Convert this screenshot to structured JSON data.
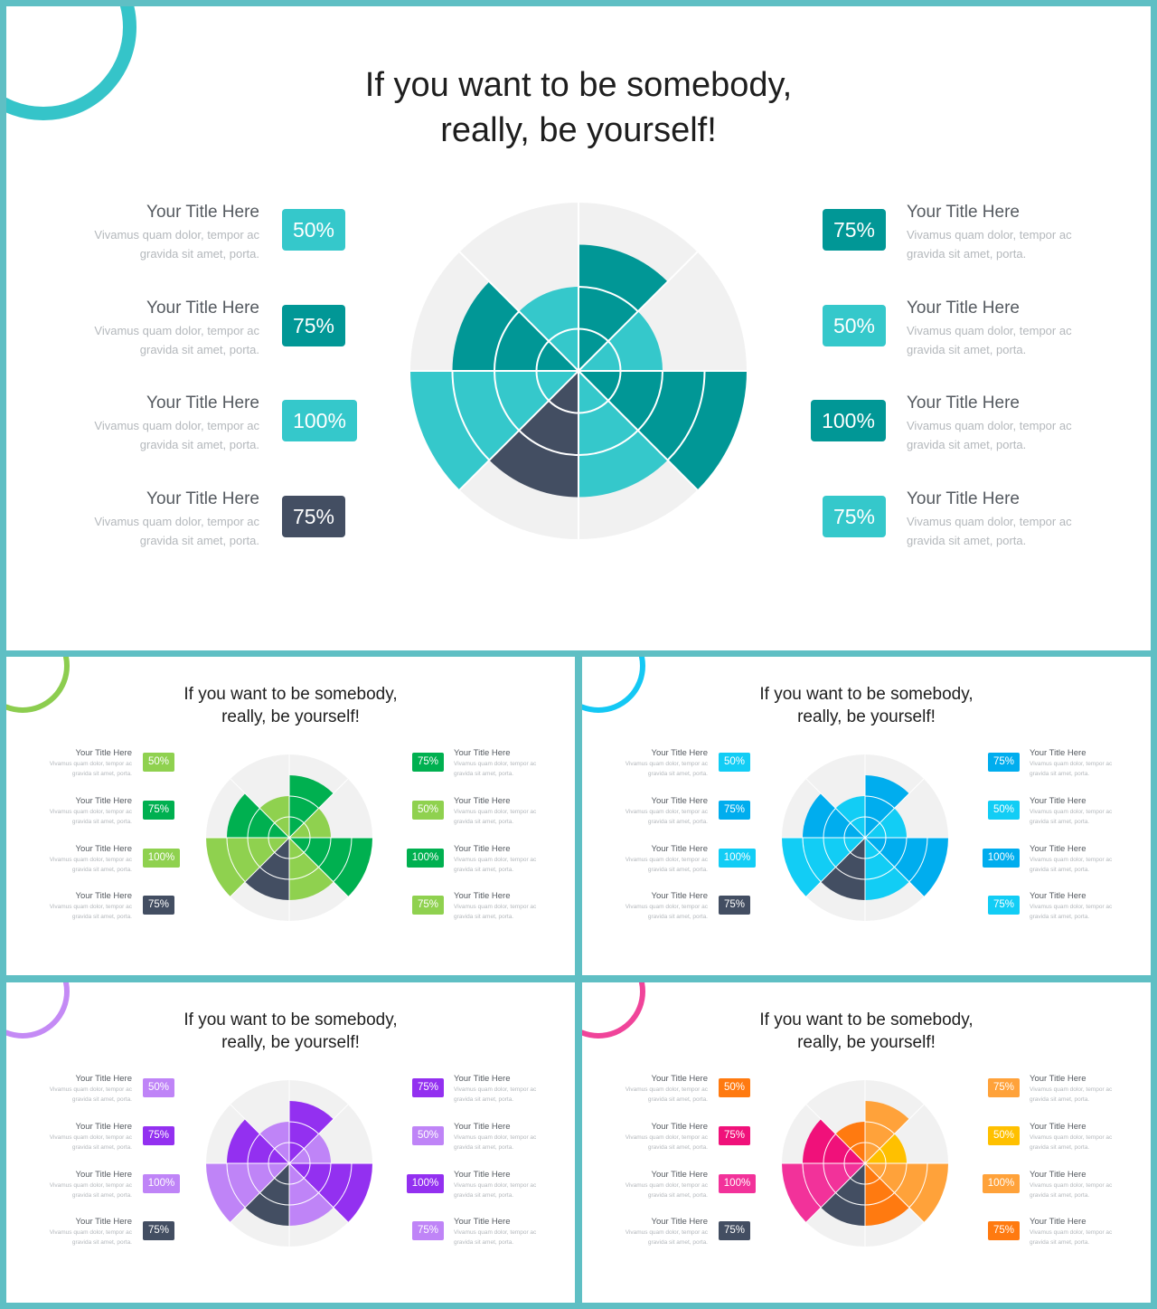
{
  "slides": [
    {
      "id": "teal",
      "title_lines": [
        "If you want to be somebody,",
        "really, be yourself!"
      ],
      "deco_ring_color": "#35c4c9",
      "items_left": [
        {
          "title": "Your Title Here",
          "desc_lines": [
            "Vivamus quam dolor, tempor ac",
            "gravida sit amet, porta."
          ],
          "value": "50%",
          "color": "#35c8cb"
        },
        {
          "title": "Your Title Here",
          "desc_lines": [
            "Vivamus quam dolor, tempor ac",
            "gravida sit amet, porta."
          ],
          "value": "75%",
          "color": "#019796"
        },
        {
          "title": "Your Title Here",
          "desc_lines": [
            "Vivamus quam dolor, tempor ac",
            "gravida sit amet, porta."
          ],
          "value": "100%",
          "color": "#35c8cb"
        },
        {
          "title": "Your Title Here",
          "desc_lines": [
            "Vivamus quam dolor, tempor ac",
            "gravida sit amet, porta."
          ],
          "value": "75%",
          "color": "#434e62"
        }
      ],
      "items_right": [
        {
          "title": "Your Title Here",
          "desc_lines": [
            "Vivamus quam dolor, tempor ac",
            "gravida sit amet, porta."
          ],
          "value": "75%",
          "color": "#019796"
        },
        {
          "title": "Your Title Here",
          "desc_lines": [
            "Vivamus quam dolor, tempor ac",
            "gravida sit amet, porta."
          ],
          "value": "50%",
          "color": "#35c8cb"
        },
        {
          "title": "Your Title Here",
          "desc_lines": [
            "Vivamus quam dolor, tempor ac",
            "gravida sit amet, porta."
          ],
          "value": "100%",
          "color": "#019796"
        },
        {
          "title": "Your Title Here",
          "desc_lines": [
            "Vivamus quam dolor, tempor ac",
            "gravida sit amet, porta."
          ],
          "value": "75%",
          "color": "#35c8cb"
        }
      ],
      "chart_data": {
        "type": "polar-area",
        "sectors": [
          {
            "label": "right-1",
            "value": 75,
            "color": "#019796"
          },
          {
            "label": "right-2",
            "value": 50,
            "color": "#35c8cb"
          },
          {
            "label": "right-3",
            "value": 100,
            "color": "#019796"
          },
          {
            "label": "right-4",
            "value": 75,
            "color": "#35c8cb"
          },
          {
            "label": "left-4",
            "value": 75,
            "color": "#434e62"
          },
          {
            "label": "left-3",
            "value": 100,
            "color": "#35c8cb"
          },
          {
            "label": "left-2",
            "value": 75,
            "color": "#019796"
          },
          {
            "label": "left-1",
            "value": 50,
            "color": "#35c8cb"
          }
        ],
        "max_value": 100,
        "rings": [
          25,
          50,
          75
        ],
        "background_color": "#f1f1f1"
      }
    },
    {
      "id": "green",
      "title_lines": [
        "If you want to be somebody,",
        "really, be yourself!"
      ],
      "deco_ring_color": "#8ccd4f",
      "items_left": [
        {
          "title": "Your Title Here",
          "desc_lines": [
            "Vivamus quam dolor, tempor ac",
            "gravida sit amet, porta."
          ],
          "value": "50%",
          "color": "#8fd14f"
        },
        {
          "title": "Your Title Here",
          "desc_lines": [
            "Vivamus quam dolor, tempor ac",
            "gravida sit amet, porta."
          ],
          "value": "75%",
          "color": "#00b050"
        },
        {
          "title": "Your Title Here",
          "desc_lines": [
            "Vivamus quam dolor, tempor ac",
            "gravida sit amet, porta."
          ],
          "value": "100%",
          "color": "#8fd14f"
        },
        {
          "title": "Your Title Here",
          "desc_lines": [
            "Vivamus quam dolor, tempor ac",
            "gravida sit amet, porta."
          ],
          "value": "75%",
          "color": "#434e62"
        }
      ],
      "items_right": [
        {
          "title": "Your Title Here",
          "desc_lines": [
            "Vivamus quam dolor, tempor ac",
            "gravida sit amet, porta."
          ],
          "value": "75%",
          "color": "#00b050"
        },
        {
          "title": "Your Title Here",
          "desc_lines": [
            "Vivamus quam dolor, tempor ac",
            "gravida sit amet, porta."
          ],
          "value": "50%",
          "color": "#8fd14f"
        },
        {
          "title": "Your Title Here",
          "desc_lines": [
            "Vivamus quam dolor, tempor ac",
            "gravida sit amet, porta."
          ],
          "value": "100%",
          "color": "#00b050"
        },
        {
          "title": "Your Title Here",
          "desc_lines": [
            "Vivamus quam dolor, tempor ac",
            "gravida sit amet, porta."
          ],
          "value": "75%",
          "color": "#8fd14f"
        }
      ],
      "chart_data": {
        "type": "polar-area",
        "sectors": [
          {
            "label": "right-1",
            "value": 75,
            "color": "#00b050"
          },
          {
            "label": "right-2",
            "value": 50,
            "color": "#8fd14f"
          },
          {
            "label": "right-3",
            "value": 100,
            "color": "#00b050"
          },
          {
            "label": "right-4",
            "value": 75,
            "color": "#8fd14f"
          },
          {
            "label": "left-4",
            "value": 75,
            "color": "#434e62"
          },
          {
            "label": "left-3",
            "value": 100,
            "color": "#8fd14f"
          },
          {
            "label": "left-2",
            "value": 75,
            "color": "#00b050"
          },
          {
            "label": "left-1",
            "value": 50,
            "color": "#8fd14f"
          }
        ],
        "max_value": 100,
        "rings": [
          25,
          50,
          75
        ],
        "background_color": "#f1f1f1"
      }
    },
    {
      "id": "blue",
      "title_lines": [
        "If you want to be somebody,",
        "really, be yourself!"
      ],
      "deco_ring_color": "#14c8f4",
      "items_left": [
        {
          "title": "Your Title Here",
          "desc_lines": [
            "Vivamus quam dolor, tempor ac",
            "gravida sit amet, porta."
          ],
          "value": "50%",
          "color": "#12cdf5"
        },
        {
          "title": "Your Title Here",
          "desc_lines": [
            "Vivamus quam dolor, tempor ac",
            "gravida sit amet, porta."
          ],
          "value": "75%",
          "color": "#00adee"
        },
        {
          "title": "Your Title Here",
          "desc_lines": [
            "Vivamus quam dolor, tempor ac",
            "gravida sit amet, porta."
          ],
          "value": "100%",
          "color": "#12cdf5"
        },
        {
          "title": "Your Title Here",
          "desc_lines": [
            "Vivamus quam dolor, tempor ac",
            "gravida sit amet, porta."
          ],
          "value": "75%",
          "color": "#434e62"
        }
      ],
      "items_right": [
        {
          "title": "Your Title Here",
          "desc_lines": [
            "Vivamus quam dolor, tempor ac",
            "gravida sit amet, porta."
          ],
          "value": "75%",
          "color": "#00adee"
        },
        {
          "title": "Your Title Here",
          "desc_lines": [
            "Vivamus quam dolor, tempor ac",
            "gravida sit amet, porta."
          ],
          "value": "50%",
          "color": "#12cdf5"
        },
        {
          "title": "Your Title Here",
          "desc_lines": [
            "Vivamus quam dolor, tempor ac",
            "gravida sit amet, porta."
          ],
          "value": "100%",
          "color": "#00adee"
        },
        {
          "title": "Your Title Here",
          "desc_lines": [
            "Vivamus quam dolor, tempor ac",
            "gravida sit amet, porta."
          ],
          "value": "75%",
          "color": "#12cdf5"
        }
      ],
      "chart_data": {
        "type": "polar-area",
        "sectors": [
          {
            "label": "right-1",
            "value": 75,
            "color": "#00adee"
          },
          {
            "label": "right-2",
            "value": 50,
            "color": "#12cdf5"
          },
          {
            "label": "right-3",
            "value": 100,
            "color": "#00adee"
          },
          {
            "label": "right-4",
            "value": 75,
            "color": "#12cdf5"
          },
          {
            "label": "left-4",
            "value": 75,
            "color": "#434e62"
          },
          {
            "label": "left-3",
            "value": 100,
            "color": "#12cdf5"
          },
          {
            "label": "left-2",
            "value": 75,
            "color": "#00adee"
          },
          {
            "label": "left-1",
            "value": 50,
            "color": "#12cdf5"
          }
        ],
        "max_value": 100,
        "rings": [
          25,
          50,
          75
        ],
        "background_color": "#f1f1f1"
      }
    },
    {
      "id": "purple",
      "title_lines": [
        "If you want to be somebody,",
        "really, be yourself!"
      ],
      "deco_ring_color": "#c48af5",
      "items_left": [
        {
          "title": "Your Title Here",
          "desc_lines": [
            "Vivamus quam dolor, tempor ac",
            "gravida sit amet, porta."
          ],
          "value": "50%",
          "color": "#bf84f7"
        },
        {
          "title": "Your Title Here",
          "desc_lines": [
            "Vivamus quam dolor, tempor ac",
            "gravida sit amet, porta."
          ],
          "value": "75%",
          "color": "#9330f0"
        },
        {
          "title": "Your Title Here",
          "desc_lines": [
            "Vivamus quam dolor, tempor ac",
            "gravida sit amet, porta."
          ],
          "value": "100%",
          "color": "#bf84f7"
        },
        {
          "title": "Your Title Here",
          "desc_lines": [
            "Vivamus quam dolor, tempor ac",
            "gravida sit amet, porta."
          ],
          "value": "75%",
          "color": "#434e62"
        }
      ],
      "items_right": [
        {
          "title": "Your Title Here",
          "desc_lines": [
            "Vivamus quam dolor, tempor ac",
            "gravida sit amet, porta."
          ],
          "value": "75%",
          "color": "#9330f0"
        },
        {
          "title": "Your Title Here",
          "desc_lines": [
            "Vivamus quam dolor, tempor ac",
            "gravida sit amet, porta."
          ],
          "value": "50%",
          "color": "#bf84f7"
        },
        {
          "title": "Your Title Here",
          "desc_lines": [
            "Vivamus quam dolor, tempor ac",
            "gravida sit amet, porta."
          ],
          "value": "100%",
          "color": "#9330f0"
        },
        {
          "title": "Your Title Here",
          "desc_lines": [
            "Vivamus quam dolor, tempor ac",
            "gravida sit amet, porta."
          ],
          "value": "75%",
          "color": "#bf84f7"
        }
      ],
      "chart_data": {
        "type": "polar-area",
        "sectors": [
          {
            "label": "right-1",
            "value": 75,
            "color": "#9330f0"
          },
          {
            "label": "right-2",
            "value": 50,
            "color": "#bf84f7"
          },
          {
            "label": "right-3",
            "value": 100,
            "color": "#9330f0"
          },
          {
            "label": "right-4",
            "value": 75,
            "color": "#bf84f7"
          },
          {
            "label": "left-4",
            "value": 75,
            "color": "#434e62"
          },
          {
            "label": "left-3",
            "value": 100,
            "color": "#bf84f7"
          },
          {
            "label": "left-2",
            "value": 75,
            "color": "#9330f0"
          },
          {
            "label": "left-1",
            "value": 50,
            "color": "#bf84f7"
          }
        ],
        "max_value": 100,
        "rings": [
          25,
          50,
          75
        ],
        "background_color": "#f1f1f1"
      }
    },
    {
      "id": "warm",
      "title_lines": [
        "If you want to be somebody,",
        "really, be yourself!"
      ],
      "deco_ring_color": "#f0449a",
      "items_left": [
        {
          "title": "Your Title Here",
          "desc_lines": [
            "Vivamus quam dolor, tempor ac",
            "gravida sit amet, porta."
          ],
          "value": "50%",
          "color": "#ff7a10"
        },
        {
          "title": "Your Title Here",
          "desc_lines": [
            "Vivamus quam dolor, tempor ac",
            "gravida sit amet, porta."
          ],
          "value": "75%",
          "color": "#f0117a"
        },
        {
          "title": "Your Title Here",
          "desc_lines": [
            "Vivamus quam dolor, tempor ac",
            "gravida sit amet, porta."
          ],
          "value": "100%",
          "color": "#f2329a"
        },
        {
          "title": "Your Title Here",
          "desc_lines": [
            "Vivamus quam dolor, tempor ac",
            "gravida sit amet, porta."
          ],
          "value": "75%",
          "color": "#434e62"
        }
      ],
      "items_right": [
        {
          "title": "Your Title Here",
          "desc_lines": [
            "Vivamus quam dolor, tempor ac",
            "gravida sit amet, porta."
          ],
          "value": "75%",
          "color": "#ffa23a"
        },
        {
          "title": "Your Title Here",
          "desc_lines": [
            "Vivamus quam dolor, tempor ac",
            "gravida sit amet, porta."
          ],
          "value": "50%",
          "color": "#ffc000"
        },
        {
          "title": "Your Title Here",
          "desc_lines": [
            "Vivamus quam dolor, tempor ac",
            "gravida sit amet, porta."
          ],
          "value": "100%",
          "color": "#ffa23a"
        },
        {
          "title": "Your Title Here",
          "desc_lines": [
            "Vivamus quam dolor, tempor ac",
            "gravida sit amet, porta."
          ],
          "value": "75%",
          "color": "#ff7a10"
        }
      ],
      "chart_data": {
        "type": "polar-area",
        "sectors": [
          {
            "label": "right-1",
            "value": 75,
            "color": "#ffa23a"
          },
          {
            "label": "right-2",
            "value": 50,
            "color": "#ffc000"
          },
          {
            "label": "right-3",
            "value": 100,
            "color": "#ffa23a"
          },
          {
            "label": "right-4",
            "value": 75,
            "color": "#ff7a10"
          },
          {
            "label": "left-4",
            "value": 75,
            "color": "#434e62"
          },
          {
            "label": "left-3",
            "value": 100,
            "color": "#f2329a"
          },
          {
            "label": "left-2",
            "value": 75,
            "color": "#f0117a"
          },
          {
            "label": "left-1",
            "value": 50,
            "color": "#ff7a10"
          }
        ],
        "max_value": 100,
        "rings": [
          25,
          50,
          75
        ],
        "background_color": "#f1f1f1"
      }
    }
  ]
}
